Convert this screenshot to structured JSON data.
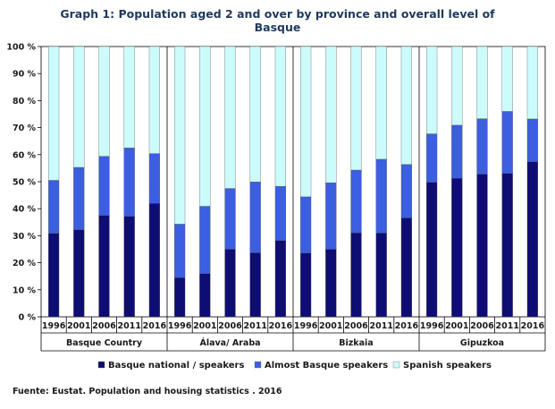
{
  "chart_data": {
    "type": "bar",
    "stacked": true,
    "title_line1": "Graph 1: Population aged 2 and over by province and overall level of",
    "title_line2": "Basque",
    "ylim": [
      0,
      100
    ],
    "yticks": [
      0,
      10,
      20,
      30,
      40,
      50,
      60,
      70,
      80,
      90,
      100
    ],
    "ytick_suffix": " %",
    "groups": [
      {
        "name": "Basque Country",
        "years": [
          "1996",
          "2001",
          "2006",
          "2011",
          "2016"
        ]
      },
      {
        "name": "Álava/ Araba",
        "years": [
          "1996",
          "2001",
          "2006",
          "2011",
          "2016"
        ]
      },
      {
        "name": "Bizkaia",
        "years": [
          "1996",
          "2001",
          "2006",
          "2011",
          "2016"
        ]
      },
      {
        "name": "Gipuzkoa",
        "years": [
          "1996",
          "2001",
          "2006",
          "2011",
          "2016"
        ]
      }
    ],
    "series": [
      {
        "name": "Basque national / speakers",
        "color": "#0d0d73",
        "values": [
          30.9,
          32.2,
          37.5,
          37.2,
          42.0,
          14.5,
          16.0,
          25.0,
          23.7,
          28.2,
          23.6,
          25.0,
          31.1,
          31.0,
          36.6,
          49.8,
          51.3,
          52.8,
          53.1,
          57.4
        ]
      },
      {
        "name": "Almost Basque speakers",
        "color": "#3b5fe0",
        "values": [
          19.6,
          23.1,
          21.9,
          25.3,
          18.4,
          19.8,
          24.9,
          22.5,
          26.2,
          20.1,
          20.8,
          24.6,
          23.2,
          27.3,
          19.8,
          17.9,
          19.6,
          20.5,
          22.9,
          15.8
        ]
      },
      {
        "name": "Spanish speakers",
        "color": "#ccfbfb",
        "values": [
          49.5,
          44.7,
          40.6,
          37.5,
          39.6,
          65.7,
          59.1,
          52.5,
          50.1,
          51.7,
          55.6,
          50.4,
          45.7,
          41.7,
          43.6,
          32.3,
          29.1,
          26.7,
          24.0,
          26.8
        ]
      }
    ]
  },
  "footer": {
    "source": "Fuente: Eustat. Population and housing statistics . 2016"
  }
}
